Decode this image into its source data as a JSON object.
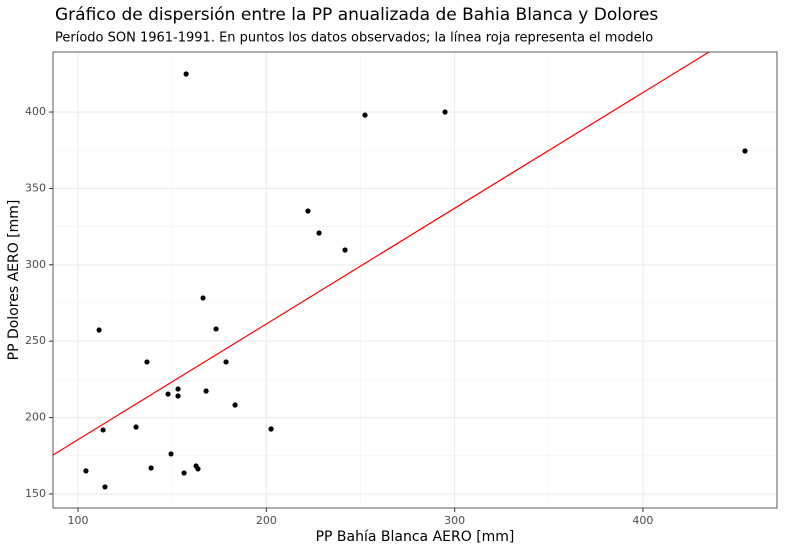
{
  "chart_data": {
    "type": "scatter",
    "title": "Gráfico de dispersión entre la PP anualizada de Bahia Blanca y Dolores",
    "subtitle": "Período SON 1961-1991. En puntos los datos observados; la línea roja representa el modelo",
    "x_label": "PP Bahía Blanca AERO [mm]",
    "y_label": "PP Dolores AERO [mm]",
    "x": [
      157.4,
      252.4,
      294.9,
      454.2,
      222.1,
      228.0,
      241.8,
      166.4,
      111.2,
      173.3,
      136.6,
      178.6,
      153.1,
      147.8,
      168.0,
      153.1,
      183.4,
      113.3,
      130.8,
      202.5,
      149.4,
      104.2,
      138.8,
      162.7,
      163.7,
      156.3,
      114.3
    ],
    "y": [
      424.9,
      398.0,
      400.0,
      374.5,
      335.2,
      320.8,
      309.7,
      278.3,
      257.3,
      258.0,
      236.4,
      236.4,
      218.7,
      215.4,
      217.4,
      214.1,
      208.2,
      191.9,
      193.8,
      192.5,
      176.2,
      165.1,
      167.0,
      168.3,
      166.4,
      163.7,
      154.6
    ],
    "color": "#000000",
    "fit_line": {
      "x": [
        86.7,
        435.1
      ],
      "y": [
        175.5,
        439.3
      ],
      "color": "#ff0000"
    },
    "xlim": [
      86.7,
      471.2
    ],
    "xticks": [
      100,
      200,
      300,
      400
    ],
    "ylim": [
      140.8,
      439.3
    ],
    "yticks": [
      150,
      200,
      250,
      300,
      350,
      400
    ],
    "grid": true,
    "minor_grid": true
  }
}
